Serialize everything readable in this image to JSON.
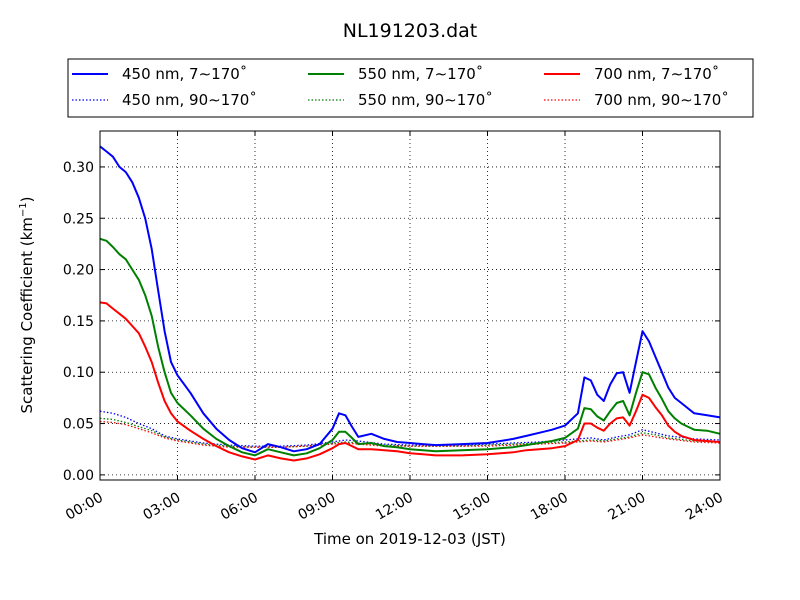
{
  "chart_data": {
    "type": "line",
    "title": "NL191203.dat",
    "xlabel": "Time on 2019-12-03 (JST)",
    "ylabel": "Scattering Coefficient (km",
    "ylabel_sup": "−1",
    "ylabel_end": ")",
    "xlim": [
      "00:00",
      "24:00"
    ],
    "ylim": [
      -0.005,
      0.335
    ],
    "x_ticks": [
      "00:00",
      "03:00",
      "06:00",
      "09:00",
      "12:00",
      "15:00",
      "18:00",
      "21:00",
      "24:00"
    ],
    "y_ticks": [
      "0.00",
      "0.05",
      "0.10",
      "0.15",
      "0.20",
      "0.25",
      "0.30"
    ],
    "grid": true,
    "legend_position": "top, above plot, 3 columns",
    "series": [
      {
        "name": "450 nm, 7∼170˚",
        "color": "#0000ff",
        "style": "solid",
        "x": [
          "00:00",
          "00:15",
          "00:30",
          "00:45",
          "01:00",
          "01:15",
          "01:30",
          "01:45",
          "02:00",
          "02:15",
          "02:30",
          "02:45",
          "03:00",
          "03:30",
          "04:00",
          "04:30",
          "05:00",
          "05:30",
          "06:00",
          "06:15",
          "06:30",
          "07:00",
          "07:30",
          "08:00",
          "08:30",
          "09:00",
          "09:15",
          "09:30",
          "09:45",
          "10:00",
          "10:30",
          "11:00",
          "11:30",
          "12:00",
          "12:30",
          "13:00",
          "14:00",
          "15:00",
          "16:00",
          "16:30",
          "17:00",
          "17:30",
          "18:00",
          "18:30",
          "18:45",
          "19:00",
          "19:15",
          "19:30",
          "19:45",
          "20:00",
          "20:15",
          "20:30",
          "20:45",
          "21:00",
          "21:15",
          "21:30",
          "21:45",
          "22:00",
          "22:15",
          "22:30",
          "22:45",
          "23:00",
          "23:30",
          "24:00"
        ],
        "values": [
          0.32,
          0.315,
          0.31,
          0.3,
          0.295,
          0.285,
          0.27,
          0.25,
          0.22,
          0.18,
          0.14,
          0.11,
          0.097,
          0.08,
          0.06,
          0.045,
          0.034,
          0.026,
          0.022,
          0.026,
          0.03,
          0.027,
          0.023,
          0.025,
          0.03,
          0.045,
          0.06,
          0.058,
          0.047,
          0.037,
          0.04,
          0.035,
          0.032,
          0.031,
          0.03,
          0.029,
          0.03,
          0.031,
          0.035,
          0.038,
          0.041,
          0.044,
          0.048,
          0.06,
          0.095,
          0.092,
          0.078,
          0.072,
          0.088,
          0.099,
          0.1,
          0.08,
          0.11,
          0.14,
          0.13,
          0.115,
          0.1,
          0.085,
          0.075,
          0.07,
          0.065,
          0.06,
          0.058,
          0.056
        ]
      },
      {
        "name": "550 nm, 7∼170˚",
        "color": "#008000",
        "style": "solid",
        "x": [
          "00:00",
          "00:15",
          "00:30",
          "00:45",
          "01:00",
          "01:15",
          "01:30",
          "01:45",
          "02:00",
          "02:15",
          "02:30",
          "02:45",
          "03:00",
          "03:30",
          "04:00",
          "04:30",
          "05:00",
          "05:30",
          "06:00",
          "06:15",
          "06:30",
          "07:00",
          "07:30",
          "08:00",
          "08:30",
          "09:00",
          "09:15",
          "09:30",
          "09:45",
          "10:00",
          "10:30",
          "11:00",
          "11:30",
          "12:00",
          "12:30",
          "13:00",
          "14:00",
          "15:00",
          "16:00",
          "16:30",
          "17:00",
          "17:30",
          "18:00",
          "18:30",
          "18:45",
          "19:00",
          "19:15",
          "19:30",
          "19:45",
          "20:00",
          "20:15",
          "20:30",
          "20:45",
          "21:00",
          "21:15",
          "21:30",
          "21:45",
          "22:00",
          "22:15",
          "22:30",
          "22:45",
          "23:00",
          "23:30",
          "24:00"
        ],
        "values": [
          0.23,
          0.228,
          0.222,
          0.215,
          0.21,
          0.2,
          0.19,
          0.175,
          0.155,
          0.125,
          0.1,
          0.08,
          0.07,
          0.058,
          0.045,
          0.035,
          0.028,
          0.022,
          0.019,
          0.022,
          0.025,
          0.022,
          0.019,
          0.021,
          0.026,
          0.034,
          0.042,
          0.042,
          0.036,
          0.03,
          0.031,
          0.028,
          0.027,
          0.025,
          0.024,
          0.023,
          0.024,
          0.025,
          0.027,
          0.029,
          0.031,
          0.033,
          0.036,
          0.045,
          0.065,
          0.064,
          0.057,
          0.053,
          0.062,
          0.07,
          0.072,
          0.058,
          0.08,
          0.1,
          0.098,
          0.085,
          0.074,
          0.062,
          0.055,
          0.05,
          0.047,
          0.044,
          0.043,
          0.04
        ]
      },
      {
        "name": "700 nm, 7∼170˚",
        "color": "#ff0000",
        "style": "solid",
        "x": [
          "00:00",
          "00:15",
          "00:30",
          "00:45",
          "01:00",
          "01:15",
          "01:30",
          "01:45",
          "02:00",
          "02:15",
          "02:30",
          "02:45",
          "03:00",
          "03:30",
          "04:00",
          "04:30",
          "05:00",
          "05:30",
          "06:00",
          "06:15",
          "06:30",
          "07:00",
          "07:30",
          "08:00",
          "08:30",
          "09:00",
          "09:15",
          "09:30",
          "09:45",
          "10:00",
          "10:30",
          "11:00",
          "11:30",
          "12:00",
          "12:30",
          "13:00",
          "14:00",
          "15:00",
          "16:00",
          "16:30",
          "17:00",
          "17:30",
          "18:00",
          "18:30",
          "18:45",
          "19:00",
          "19:15",
          "19:30",
          "19:45",
          "20:00",
          "20:15",
          "20:30",
          "20:45",
          "21:00",
          "21:15",
          "21:30",
          "21:45",
          "22:00",
          "22:15",
          "22:30",
          "22:45",
          "23:00",
          "23:30",
          "24:00"
        ],
        "values": [
          0.168,
          0.167,
          0.162,
          0.157,
          0.152,
          0.145,
          0.138,
          0.125,
          0.11,
          0.09,
          0.072,
          0.06,
          0.052,
          0.043,
          0.035,
          0.028,
          0.022,
          0.018,
          0.015,
          0.017,
          0.019,
          0.016,
          0.014,
          0.016,
          0.02,
          0.026,
          0.03,
          0.031,
          0.028,
          0.025,
          0.025,
          0.024,
          0.023,
          0.021,
          0.02,
          0.019,
          0.019,
          0.02,
          0.022,
          0.024,
          0.025,
          0.026,
          0.028,
          0.034,
          0.05,
          0.05,
          0.046,
          0.043,
          0.05,
          0.055,
          0.056,
          0.048,
          0.062,
          0.078,
          0.075,
          0.066,
          0.058,
          0.048,
          0.042,
          0.038,
          0.036,
          0.034,
          0.033,
          0.032
        ]
      },
      {
        "name": "450 nm, 90∼170˚",
        "color": "#0000ff",
        "style": "dotted",
        "x": [
          "00:00",
          "00:30",
          "01:00",
          "01:30",
          "02:00",
          "02:30",
          "03:00",
          "03:30",
          "04:00",
          "05:00",
          "06:00",
          "07:00",
          "08:00",
          "09:00",
          "09:30",
          "10:00",
          "11:00",
          "12:00",
          "13:00",
          "14:00",
          "15:00",
          "16:00",
          "17:00",
          "18:00",
          "18:30",
          "19:00",
          "19:30",
          "20:00",
          "20:30",
          "21:00",
          "21:30",
          "22:00",
          "23:00",
          "24:00"
        ],
        "values": [
          0.062,
          0.06,
          0.056,
          0.05,
          0.045,
          0.038,
          0.035,
          0.033,
          0.031,
          0.029,
          0.028,
          0.028,
          0.029,
          0.032,
          0.034,
          0.033,
          0.03,
          0.029,
          0.029,
          0.029,
          0.03,
          0.031,
          0.032,
          0.034,
          0.035,
          0.036,
          0.034,
          0.037,
          0.039,
          0.044,
          0.041,
          0.038,
          0.035,
          0.034
        ]
      },
      {
        "name": "550 nm, 90∼170˚",
        "color": "#008000",
        "style": "dotted",
        "x": [
          "00:00",
          "00:30",
          "01:00",
          "01:30",
          "02:00",
          "02:30",
          "03:00",
          "03:30",
          "04:00",
          "05:00",
          "06:00",
          "07:00",
          "08:00",
          "09:00",
          "09:30",
          "10:00",
          "11:00",
          "12:00",
          "13:00",
          "14:00",
          "15:00",
          "16:00",
          "17:00",
          "18:00",
          "18:30",
          "19:00",
          "19:30",
          "20:00",
          "20:30",
          "21:00",
          "21:30",
          "22:00",
          "23:00",
          "24:00"
        ],
        "values": [
          0.055,
          0.054,
          0.051,
          0.047,
          0.043,
          0.037,
          0.034,
          0.032,
          0.03,
          0.028,
          0.027,
          0.027,
          0.028,
          0.031,
          0.032,
          0.031,
          0.029,
          0.028,
          0.028,
          0.028,
          0.029,
          0.03,
          0.031,
          0.032,
          0.033,
          0.034,
          0.033,
          0.035,
          0.037,
          0.041,
          0.039,
          0.036,
          0.033,
          0.032
        ]
      },
      {
        "name": "700 nm, 90∼170˚",
        "color": "#ff0000",
        "style": "dotted",
        "x": [
          "00:00",
          "00:30",
          "01:00",
          "01:30",
          "02:00",
          "02:30",
          "03:00",
          "03:30",
          "04:00",
          "05:00",
          "06:00",
          "07:00",
          "08:00",
          "09:00",
          "09:30",
          "10:00",
          "11:00",
          "12:00",
          "13:00",
          "14:00",
          "15:00",
          "16:00",
          "17:00",
          "18:00",
          "18:30",
          "19:00",
          "19:30",
          "20:00",
          "20:30",
          "21:00",
          "21:30",
          "22:00",
          "23:00",
          "24:00"
        ],
        "values": [
          0.052,
          0.051,
          0.049,
          0.045,
          0.041,
          0.036,
          0.033,
          0.031,
          0.029,
          0.027,
          0.027,
          0.027,
          0.028,
          0.03,
          0.031,
          0.03,
          0.028,
          0.028,
          0.028,
          0.028,
          0.028,
          0.029,
          0.03,
          0.031,
          0.032,
          0.033,
          0.032,
          0.034,
          0.036,
          0.039,
          0.037,
          0.035,
          0.032,
          0.031
        ]
      }
    ]
  }
}
